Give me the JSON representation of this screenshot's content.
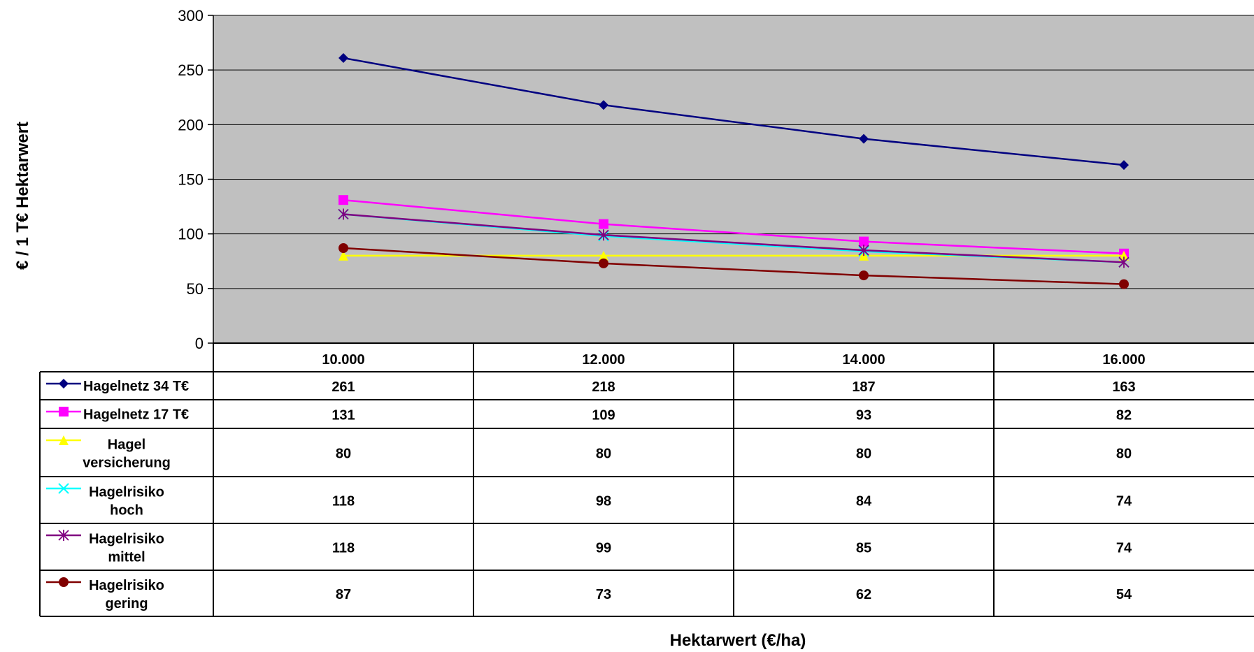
{
  "chart_data": {
    "type": "line",
    "title": "",
    "xlabel": "Hektarwert (€/ha)",
    "ylabel": "€ / 1 T€ Hektarwert",
    "ylim": [
      0,
      300
    ],
    "yticks": [
      0,
      50,
      100,
      150,
      200,
      250,
      300
    ],
    "grid": true,
    "legend": "data-table",
    "categories": [
      "10.000",
      "12.000",
      "14.000",
      "16.000"
    ],
    "series": [
      {
        "name": "Hagelnetz 34 T€",
        "name_lines": [
          "Hagelnetz 34 T€"
        ],
        "values": [
          261,
          218,
          187,
          163
        ],
        "color": "#000080",
        "marker": "diamond"
      },
      {
        "name": "Hagelnetz 17 T€",
        "name_lines": [
          "Hagelnetz 17 T€"
        ],
        "values": [
          131,
          109,
          93,
          82
        ],
        "color": "#FF00FF",
        "marker": "square"
      },
      {
        "name": "Hagel versicherung",
        "name_lines": [
          "Hagel",
          "versicherung"
        ],
        "values": [
          80,
          80,
          80,
          80
        ],
        "color": "#FFFF00",
        "marker": "triangle"
      },
      {
        "name": "Hagelrisiko hoch",
        "name_lines": [
          "Hagelrisiko",
          "hoch"
        ],
        "values": [
          118,
          98,
          84,
          74
        ],
        "color": "#00FFFF",
        "marker": "x"
      },
      {
        "name": "Hagelrisiko mittel",
        "name_lines": [
          "Hagelrisiko",
          "mittel"
        ],
        "values": [
          118,
          99,
          85,
          74
        ],
        "color": "#800080",
        "marker": "star"
      },
      {
        "name": "Hagelrisiko gering",
        "name_lines": [
          "Hagelrisiko",
          "gering"
        ],
        "values": [
          87,
          73,
          62,
          54
        ],
        "color": "#800000",
        "marker": "circle"
      }
    ],
    "plot_background": "#C0C0C0"
  }
}
